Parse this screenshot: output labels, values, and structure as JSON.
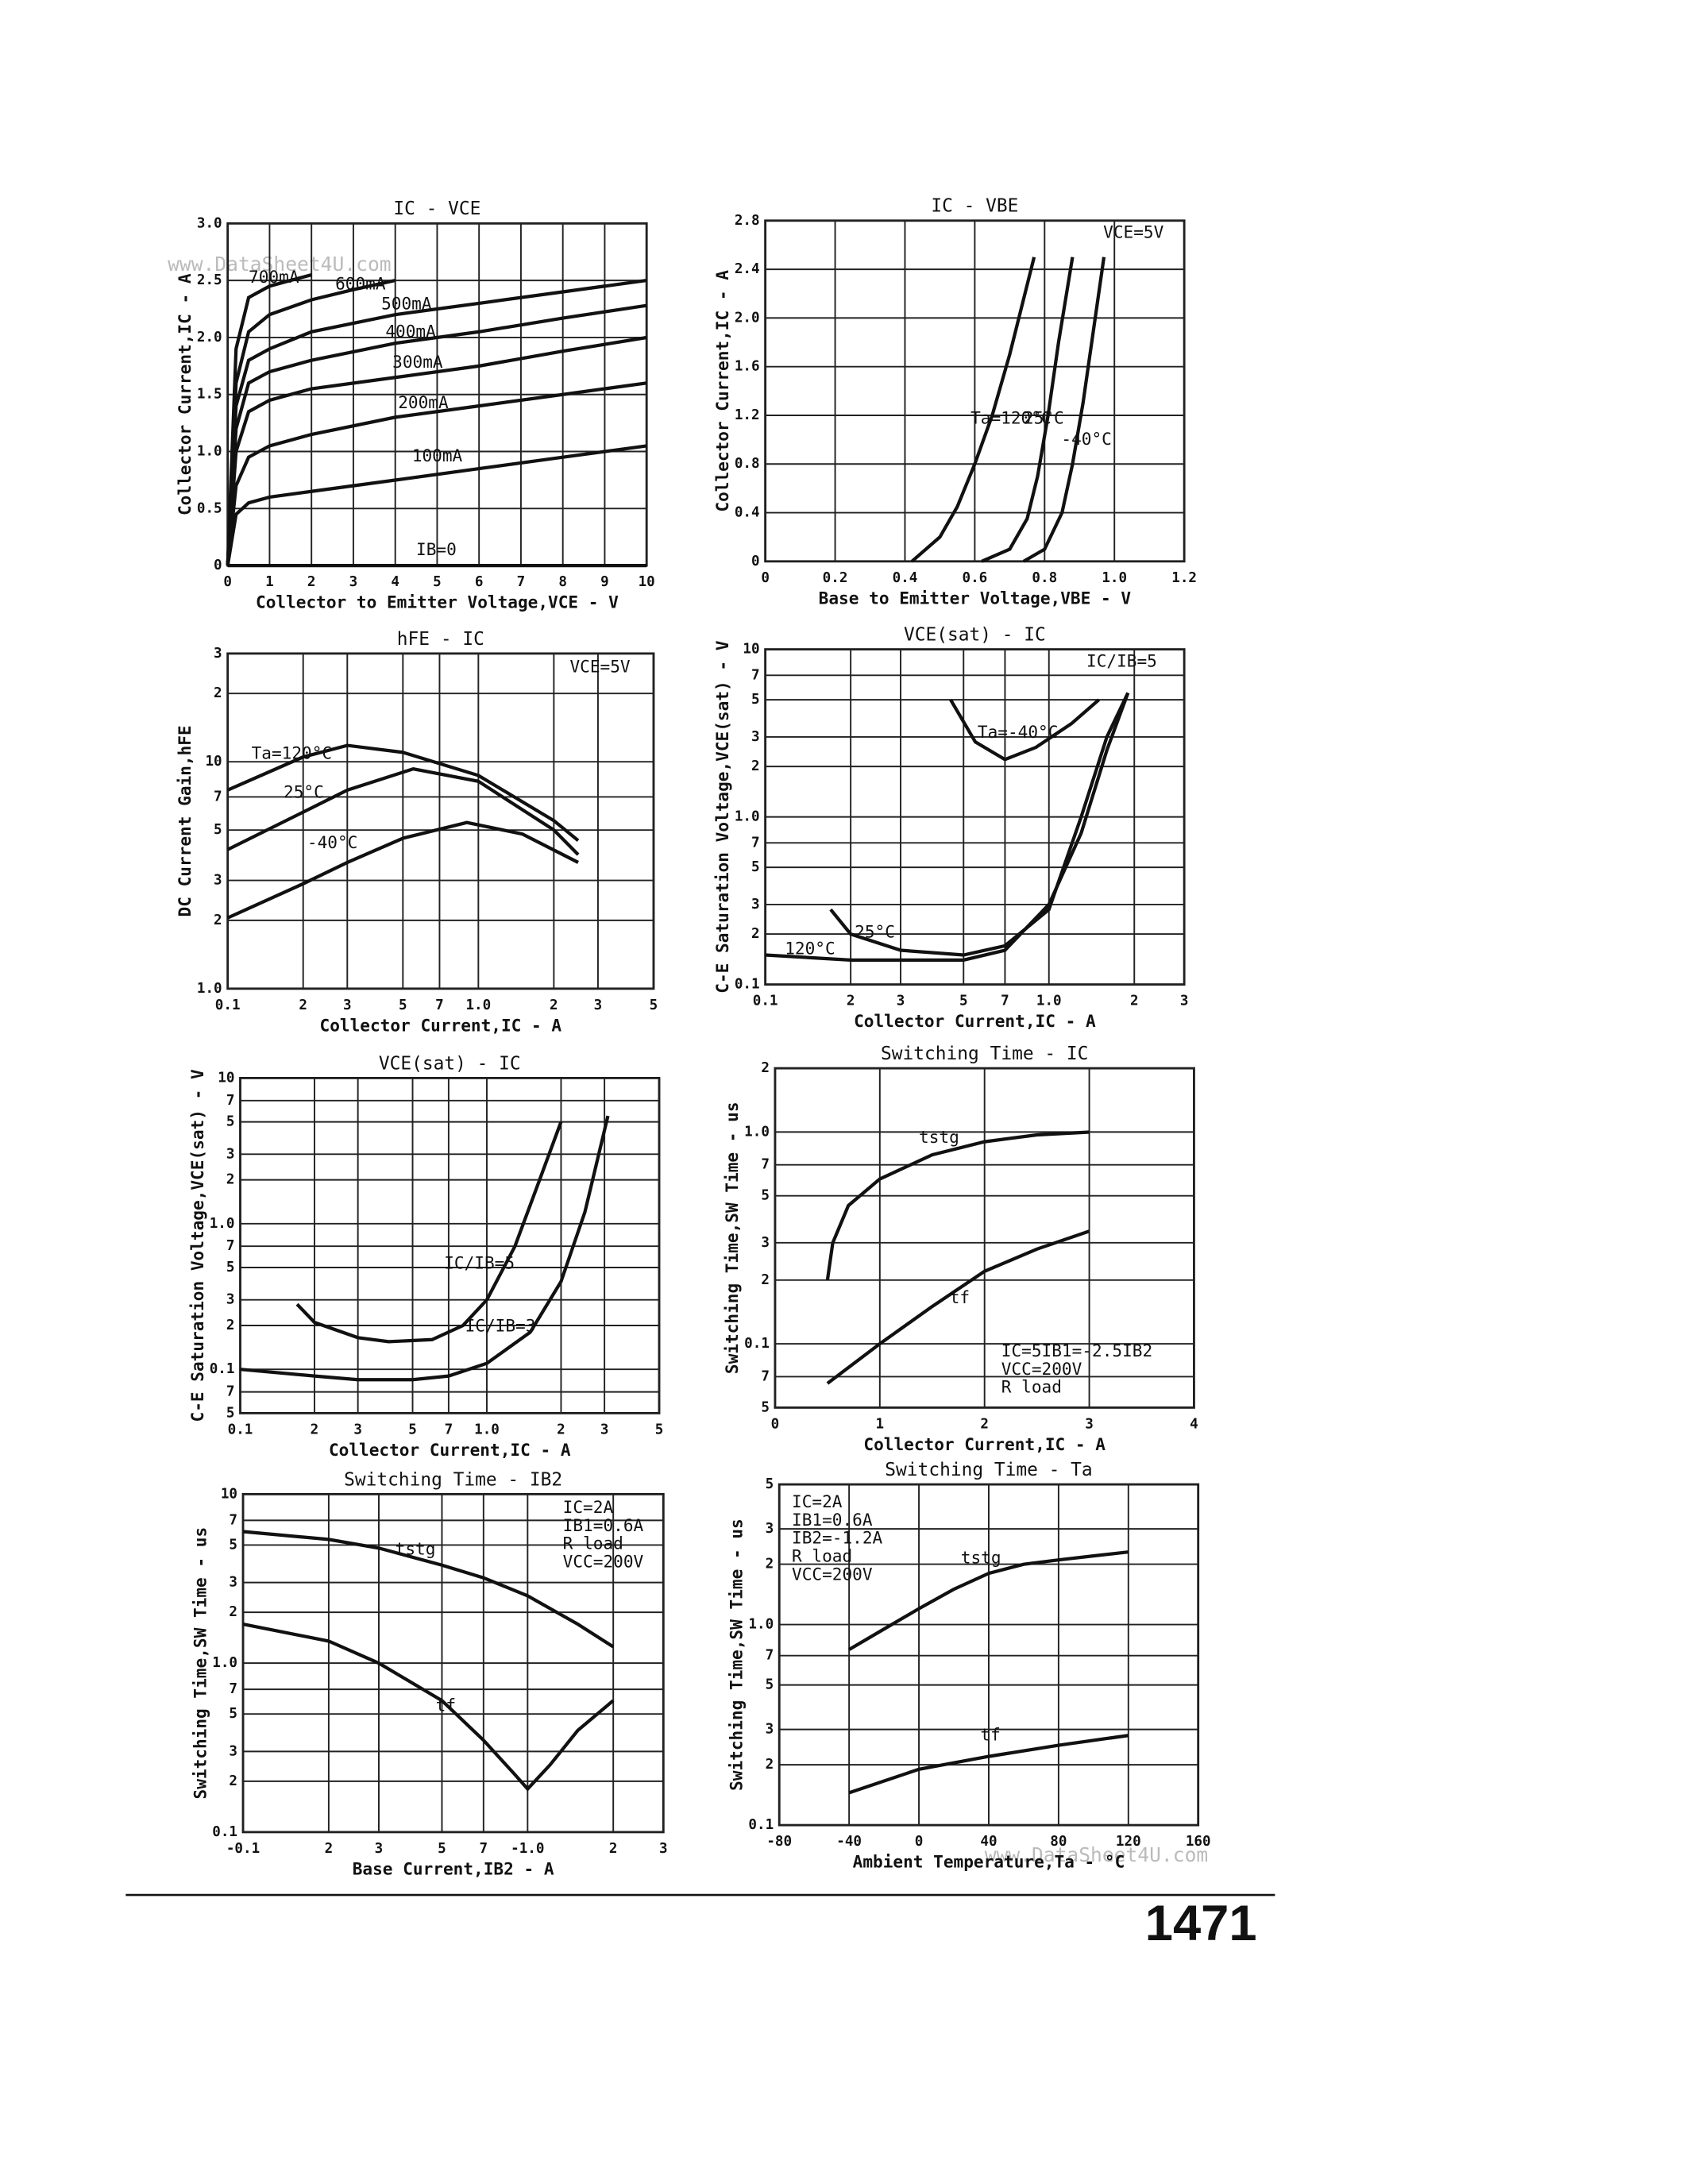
{
  "watermark": "www.DataSheet4U.com",
  "page_number": "1471",
  "chart_data": [
    {
      "type": "line",
      "title": "IC - VCE",
      "xlabel": "Collector to Emitter Voltage,VCE - V",
      "ylabel": "Collector Current,IC - A",
      "color": "#111111",
      "grid": true,
      "xlim": [
        0,
        10
      ],
      "xticks": [
        0,
        1,
        2,
        3,
        4,
        5,
        6,
        7,
        8,
        9,
        10
      ],
      "ylim": [
        0,
        3
      ],
      "yticks": [
        0,
        0.5,
        {
          "value": 1,
          "label": "1.0"
        },
        1.5,
        {
          "value": 2,
          "label": "2.0"
        },
        2.5,
        {
          "value": 3,
          "label": "3.0"
        }
      ],
      "series": [
        {
          "name": "700mA",
          "x": [
            0,
            0.2,
            0.5,
            1,
            1.5,
            2
          ],
          "values": [
            0,
            1.9,
            2.35,
            2.45,
            2.5,
            2.55
          ]
        },
        {
          "name": "600mA",
          "x": [
            0,
            0.2,
            0.5,
            1,
            2,
            3,
            4
          ],
          "values": [
            0,
            1.6,
            2.05,
            2.2,
            2.33,
            2.42,
            2.5
          ]
        },
        {
          "name": "500mA",
          "x": [
            0,
            0.2,
            0.5,
            1,
            2,
            4,
            6,
            8,
            10
          ],
          "values": [
            0,
            1.4,
            1.8,
            1.9,
            2.05,
            2.2,
            2.3,
            2.4,
            2.5
          ]
        },
        {
          "name": "400mA",
          "x": [
            0,
            0.2,
            0.5,
            1,
            2,
            4,
            6,
            8,
            10
          ],
          "values": [
            0,
            1.2,
            1.6,
            1.7,
            1.8,
            1.95,
            2.05,
            2.17,
            2.28
          ]
        },
        {
          "name": "300mA",
          "x": [
            0,
            0.2,
            0.5,
            1,
            2,
            4,
            6,
            8,
            10
          ],
          "values": [
            0,
            1,
            1.35,
            1.45,
            1.55,
            1.65,
            1.75,
            1.88,
            2
          ]
        },
        {
          "name": "200mA",
          "x": [
            0,
            0.2,
            0.5,
            1,
            2,
            4,
            6,
            8,
            10
          ],
          "values": [
            0,
            0.7,
            0.95,
            1.05,
            1.15,
            1.3,
            1.4,
            1.5,
            1.6
          ]
        },
        {
          "name": "100mA",
          "x": [
            0,
            0.2,
            0.5,
            1,
            2,
            4,
            6,
            8,
            10
          ],
          "values": [
            0,
            0.45,
            0.55,
            0.6,
            0.65,
            0.75,
            0.85,
            0.95,
            1.05
          ]
        },
        {
          "name": "IB=0",
          "x": [
            0,
            10
          ],
          "values": [
            0,
            0
          ]
        }
      ]
    },
    {
      "type": "line",
      "title": "IC - VBE",
      "xlabel": "Base to Emitter Voltage,VBE - V",
      "ylabel": "Collector Current,IC - A",
      "color": "#111111",
      "grid": true,
      "annotations": [
        "VCE=5V"
      ],
      "xlim": [
        0,
        1.2
      ],
      "xticks": [
        0,
        0.2,
        0.4,
        0.6,
        0.8,
        {
          "value": 1,
          "label": "1.0"
        },
        1.2
      ],
      "ylim": [
        0,
        2.8
      ],
      "yticks": [
        0,
        0.4,
        0.8,
        1.2,
        1.6,
        {
          "value": 2,
          "label": "2.0"
        },
        2.4,
        2.8
      ],
      "series": [
        {
          "name": "Ta=120°C",
          "x": [
            0.42,
            0.5,
            0.55,
            0.6,
            0.65,
            0.7,
            0.77
          ],
          "values": [
            0,
            0.2,
            0.45,
            0.8,
            1.2,
            1.7,
            2.5
          ]
        },
        {
          "name": "25°C",
          "x": [
            0.62,
            0.7,
            0.75,
            0.78,
            0.81,
            0.84,
            0.88
          ],
          "values": [
            0,
            0.1,
            0.35,
            0.7,
            1.2,
            1.8,
            2.5
          ]
        },
        {
          "name": "-40°C",
          "x": [
            0.74,
            0.8,
            0.85,
            0.88,
            0.91,
            0.94,
            0.97
          ],
          "values": [
            0,
            0.1,
            0.4,
            0.8,
            1.3,
            1.9,
            2.5
          ]
        }
      ]
    },
    {
      "type": "line",
      "title": "hFE - IC",
      "xlabel": "Collector Current,IC - A",
      "ylabel": "DC Current Gain,hFE",
      "color": "#111111",
      "grid": true,
      "annotations": [
        "VCE=5V"
      ],
      "xscale": "log",
      "yscale": "log",
      "xlim": [
        0.1,
        5
      ],
      "xticks": [
        0.1,
        {
          "value": 0.2,
          "label": "2"
        },
        {
          "value": 0.3,
          "label": "3"
        },
        {
          "value": 0.5,
          "label": "5"
        },
        {
          "value": 0.7,
          "label": "7"
        },
        {
          "value": 1,
          "label": "1.0"
        },
        2,
        3,
        5
      ],
      "ylim": [
        1,
        30
      ],
      "yticks": [
        {
          "value": 1,
          "label": "1.0"
        },
        2,
        3,
        5,
        7,
        10,
        {
          "value": 20,
          "label": "2"
        },
        {
          "value": 30,
          "label": "3"
        }
      ],
      "series": [
        {
          "name": "Ta=120°C",
          "x": [
            0.1,
            0.2,
            0.3,
            0.5,
            1,
            2,
            2.5
          ],
          "values": [
            7.5,
            10.5,
            11.8,
            11,
            8.7,
            5.5,
            4.5
          ]
        },
        {
          "name": "25°C",
          "x": [
            0.1,
            0.2,
            0.3,
            0.55,
            1,
            2,
            2.5
          ],
          "values": [
            4.1,
            6,
            7.5,
            9.3,
            8.2,
            5,
            3.9
          ]
        },
        {
          "name": "-40°C",
          "x": [
            0.1,
            0.2,
            0.3,
            0.5,
            0.9,
            1.5,
            2.5
          ],
          "values": [
            2.05,
            2.9,
            3.6,
            4.6,
            5.4,
            4.8,
            3.6
          ]
        }
      ]
    },
    {
      "type": "line",
      "title": "VCE(sat) - IC",
      "xlabel": "Collector Current,IC - A",
      "ylabel": "C-E Saturation Voltage,VCE(sat) - V",
      "color": "#111111",
      "grid": true,
      "annotations": [
        "IC/IB=5"
      ],
      "xscale": "log",
      "yscale": "log",
      "xlim": [
        0.1,
        3
      ],
      "xticks": [
        0.1,
        {
          "value": 0.2,
          "label": "2"
        },
        {
          "value": 0.3,
          "label": "3"
        },
        {
          "value": 0.5,
          "label": "5"
        },
        {
          "value": 0.7,
          "label": "7"
        },
        {
          "value": 1,
          "label": "1.0"
        },
        2,
        3
      ],
      "ylim": [
        0.1,
        10
      ],
      "yticks": [
        0.1,
        {
          "value": 0.2,
          "label": "2"
        },
        {
          "value": 0.3,
          "label": "3"
        },
        {
          "value": 0.5,
          "label": "5"
        },
        {
          "value": 0.7,
          "label": "7"
        },
        {
          "value": 1,
          "label": "1.0"
        },
        2,
        3,
        5,
        7,
        10
      ],
      "series": [
        {
          "name": "120°C",
          "x": [
            0.1,
            0.2,
            0.3,
            0.5,
            0.7,
            1,
            1.3,
            1.6,
            1.9
          ],
          "values": [
            0.15,
            0.14,
            0.14,
            0.14,
            0.16,
            0.3,
            0.8,
            2.5,
            5.5
          ]
        },
        {
          "name": "25°C",
          "x": [
            0.17,
            0.2,
            0.3,
            0.5,
            0.7,
            1,
            1.3,
            1.6,
            1.9
          ],
          "values": [
            0.28,
            0.2,
            0.16,
            0.15,
            0.17,
            0.28,
            1,
            3,
            5.5
          ]
        },
        {
          "name": "Ta=-40°C",
          "x": [
            0.45,
            0.55,
            0.7,
            0.9,
            1.2,
            1.5
          ],
          "values": [
            5,
            2.8,
            2.2,
            2.6,
            3.6,
            5
          ]
        }
      ]
    },
    {
      "type": "line",
      "title": "VCE(sat) - IC",
      "xlabel": "Collector Current,IC - A",
      "ylabel": "C-E Saturation Voltage,VCE(sat) - V",
      "color": "#111111",
      "grid": true,
      "xscale": "log",
      "yscale": "log",
      "xlim": [
        0.1,
        5
      ],
      "xticks": [
        0.1,
        {
          "value": 0.2,
          "label": "2"
        },
        {
          "value": 0.3,
          "label": "3"
        },
        {
          "value": 0.5,
          "label": "5"
        },
        {
          "value": 0.7,
          "label": "7"
        },
        {
          "value": 1,
          "label": "1.0"
        },
        2,
        3,
        5
      ],
      "ylim": [
        0.05,
        10
      ],
      "yticks": [
        {
          "value": 0.05,
          "label": "5"
        },
        {
          "value": 0.07,
          "label": "7"
        },
        0.1,
        {
          "value": 0.2,
          "label": "2"
        },
        {
          "value": 0.3,
          "label": "3"
        },
        {
          "value": 0.5,
          "label": "5"
        },
        {
          "value": 0.7,
          "label": "7"
        },
        {
          "value": 1,
          "label": "1.0"
        },
        2,
        3,
        5,
        7,
        10
      ],
      "series": [
        {
          "name": "IC/IB=5",
          "x": [
            0.17,
            0.2,
            0.3,
            0.4,
            0.6,
            0.8,
            1,
            1.3,
            1.6,
            2
          ],
          "values": [
            0.28,
            0.21,
            0.165,
            0.155,
            0.16,
            0.2,
            0.3,
            0.7,
            1.8,
            5
          ]
        },
        {
          "name": "IC/IB=3",
          "x": [
            0.1,
            0.2,
            0.3,
            0.5,
            0.7,
            1,
            1.5,
            2,
            2.5,
            3.1
          ],
          "values": [
            0.1,
            0.09,
            0.085,
            0.085,
            0.09,
            0.11,
            0.18,
            0.4,
            1.2,
            5.5
          ]
        }
      ]
    },
    {
      "type": "line",
      "title": "Switching Time - IC",
      "xlabel": "Collector Current,IC - A",
      "ylabel": "Switching Time,SW Time - us",
      "color": "#111111",
      "grid": true,
      "annotations": [
        "IC=5IB1=-2.5IB2",
        "VCC=200V",
        "R load"
      ],
      "yscale": "log",
      "xlim": [
        0,
        4
      ],
      "xticks": [
        0,
        1,
        2,
        3,
        4
      ],
      "ylim": [
        0.05,
        2
      ],
      "yticks": [
        {
          "value": 0.05,
          "label": "5"
        },
        {
          "value": 0.07,
          "label": "7"
        },
        0.1,
        {
          "value": 0.2,
          "label": "2"
        },
        {
          "value": 0.3,
          "label": "3"
        },
        {
          "value": 0.5,
          "label": "5"
        },
        {
          "value": 0.7,
          "label": "7"
        },
        {
          "value": 1,
          "label": "1.0"
        },
        2
      ],
      "series": [
        {
          "name": "tstg",
          "x": [
            0.5,
            0.55,
            0.7,
            1,
            1.5,
            2,
            2.5,
            3
          ],
          "values": [
            0.2,
            0.3,
            0.45,
            0.6,
            0.78,
            0.9,
            0.97,
            1
          ]
        },
        {
          "name": "tf",
          "x": [
            0.5,
            1,
            1.5,
            2,
            2.5,
            3
          ],
          "values": [
            0.065,
            0.1,
            0.15,
            0.22,
            0.28,
            0.34
          ]
        }
      ]
    },
    {
      "type": "line",
      "title": "Switching Time - IB2",
      "xlabel": "Base Current,IB2 - A",
      "ylabel": "Switching Time,SW Time - us",
      "color": "#111111",
      "grid": true,
      "annotations": [
        "IC=2A",
        "IB1=0.6A",
        "R load",
        "VCC=200V"
      ],
      "xscale": "log",
      "yscale": "log",
      "xlim": [
        -0.1,
        -3
      ],
      "xticks": [
        -0.1,
        {
          "value": -0.2,
          "label": "2"
        },
        {
          "value": -0.3,
          "label": "3"
        },
        {
          "value": -0.5,
          "label": "5"
        },
        {
          "value": -0.7,
          "label": "7"
        },
        {
          "value": -1,
          "label": "-1.0"
        },
        {
          "value": -2,
          "label": "2"
        },
        {
          "value": -3,
          "label": "3"
        }
      ],
      "ylim": [
        0.1,
        10
      ],
      "yticks": [
        0.1,
        {
          "value": 0.2,
          "label": "2"
        },
        {
          "value": 0.3,
          "label": "3"
        },
        {
          "value": 0.5,
          "label": "5"
        },
        {
          "value": 0.7,
          "label": "7"
        },
        {
          "value": 1,
          "label": "1.0"
        },
        2,
        3,
        5,
        7,
        10
      ],
      "series": [
        {
          "name": "tstg",
          "x": [
            -0.1,
            -0.2,
            -0.3,
            -0.5,
            -0.7,
            -1,
            -1.5,
            -2
          ],
          "values": [
            6,
            5.4,
            4.8,
            3.8,
            3.2,
            2.5,
            1.7,
            1.25
          ]
        },
        {
          "name": "tf",
          "x": [
            -0.1,
            -0.2,
            -0.3,
            -0.5,
            -0.7,
            -0.9,
            -1,
            -1.2,
            -1.5,
            -2
          ],
          "values": [
            1.7,
            1.35,
            1,
            0.6,
            0.35,
            0.22,
            0.18,
            0.25,
            0.4,
            0.6
          ]
        }
      ]
    },
    {
      "type": "line",
      "title": "Switching Time - Ta",
      "xlabel": "Ambient Temperature,Ta - °C",
      "ylabel": "Switching Time,SW Time - us",
      "color": "#111111",
      "grid": true,
      "annotations": [
        "IC=2A",
        "IB1=0.6A",
        "IB2=-1.2A",
        "R load",
        "VCC=200V"
      ],
      "yscale": "log",
      "xlim": [
        -80,
        160
      ],
      "xticks": [
        -80,
        -40,
        0,
        40,
        80,
        120,
        160
      ],
      "ylim": [
        0.1,
        5
      ],
      "yticks": [
        0.1,
        {
          "value": 0.2,
          "label": "2"
        },
        {
          "value": 0.3,
          "label": "3"
        },
        {
          "value": 0.5,
          "label": "5"
        },
        {
          "value": 0.7,
          "label": "7"
        },
        {
          "value": 1,
          "label": "1.0"
        },
        2,
        3,
        5
      ],
      "series": [
        {
          "name": "tstg",
          "x": [
            -40,
            -20,
            0,
            20,
            40,
            60,
            80,
            100,
            120
          ],
          "values": [
            0.75,
            0.95,
            1.2,
            1.5,
            1.8,
            2,
            2.1,
            2.2,
            2.3
          ]
        },
        {
          "name": "tf",
          "x": [
            -40,
            0,
            40,
            80,
            120
          ],
          "values": [
            0.145,
            0.19,
            0.22,
            0.25,
            0.28
          ]
        }
      ]
    }
  ]
}
